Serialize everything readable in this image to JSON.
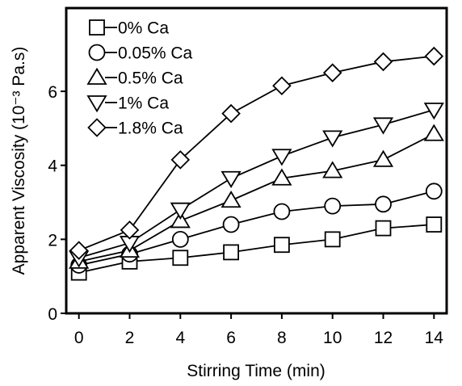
{
  "chart_data": {
    "type": "line",
    "x": [
      0,
      2,
      4,
      6,
      8,
      10,
      12,
      14
    ],
    "xlabel": "Stirring Time (min)",
    "ylabel": "Apparent Viscosity (10⁻³ Pa.s)",
    "xlim": [
      -0.5,
      14.5
    ],
    "ylim": [
      0,
      8.25
    ],
    "xticks": [
      "0",
      "2",
      "4",
      "6",
      "8",
      "10",
      "12",
      "14"
    ],
    "yticks": [
      "0",
      "2",
      "4",
      "6"
    ],
    "ytick_values": [
      0,
      2,
      4,
      6
    ],
    "grid": false,
    "legend_position": "top-left",
    "series": [
      {
        "name": "0% Ca",
        "marker": "square",
        "values": [
          1.1,
          1.4,
          1.5,
          1.65,
          1.85,
          2.0,
          2.3,
          2.4
        ]
      },
      {
        "name": "0.05% Ca",
        "marker": "circle",
        "values": [
          1.3,
          1.6,
          2.0,
          2.4,
          2.75,
          2.9,
          2.95,
          3.3
        ]
      },
      {
        "name": "0.5% Ca",
        "marker": "triangle-up",
        "values": [
          1.4,
          1.7,
          2.5,
          3.05,
          3.65,
          3.85,
          4.15,
          4.85
        ]
      },
      {
        "name": "1% Ca",
        "marker": "triangle-down",
        "values": [
          1.5,
          1.9,
          2.8,
          3.65,
          4.25,
          4.75,
          5.1,
          5.5
        ]
      },
      {
        "name": "1.8% Ca",
        "marker": "diamond",
        "values": [
          1.7,
          2.25,
          4.15,
          5.4,
          6.15,
          6.5,
          6.8,
          6.95
        ]
      }
    ]
  }
}
